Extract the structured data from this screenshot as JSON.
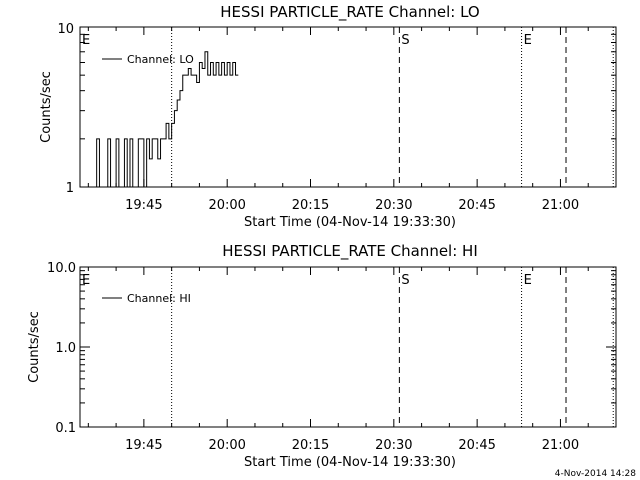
{
  "footer": {
    "timestamp": "4-Nov-2014 14:28"
  },
  "chart_data": [
    {
      "type": "line",
      "title": "HESSI PARTICLE_RATE Channel: LO",
      "xlabel": "Start Time (04-Nov-14 19:33:30)",
      "ylabel": "Counts/sec",
      "yscale": "log",
      "xlim": [
        "19:33:30",
        "21:10:00"
      ],
      "ylim": [
        1,
        10
      ],
      "y_ticks": [
        "1",
        "10"
      ],
      "x_ticks": [
        "19:45",
        "20:00",
        "20:15",
        "20:30",
        "20:45",
        "21:00"
      ],
      "legend": {
        "entries": [
          "Channel: LO"
        ],
        "position": "top-left"
      },
      "markers": [
        {
          "time": "19:33:30",
          "label": "E",
          "style": "none"
        },
        {
          "time": "19:50:00",
          "label": "",
          "style": "dotted"
        },
        {
          "time": "20:31:00",
          "label": "S",
          "style": "dashed"
        },
        {
          "time": "20:53:00",
          "label": "E",
          "style": "dotted"
        },
        {
          "time": "21:01:00",
          "label": "",
          "style": "dashed"
        },
        {
          "time": "21:09:30",
          "label": "",
          "style": "dotted"
        }
      ],
      "series": [
        {
          "name": "Channel: LO",
          "x": [
            "19:36:00",
            "19:36:30",
            "19:37:00",
            "19:37:30",
            "19:38:00",
            "19:38:30",
            "19:39:00",
            "19:39:30",
            "19:40:00",
            "19:40:30",
            "19:41:00",
            "19:41:30",
            "19:42:00",
            "19:42:30",
            "19:43:00",
            "19:43:30",
            "19:44:00",
            "19:44:30",
            "19:45:00",
            "19:45:30",
            "19:46:00",
            "19:46:30",
            "19:47:00",
            "19:47:30",
            "19:48:00",
            "19:48:30",
            "19:49:00",
            "19:49:30",
            "19:50:00",
            "19:50:30",
            "19:51:00",
            "19:51:30",
            "19:52:00",
            "19:52:30",
            "19:53:00",
            "19:53:30",
            "19:54:00",
            "19:54:30",
            "19:55:00",
            "19:55:30",
            "19:56:00",
            "19:56:30",
            "19:57:00",
            "19:57:30",
            "19:58:00",
            "19:58:30",
            "19:59:00",
            "19:59:30",
            "20:00:00",
            "20:00:30",
            "20:01:00",
            "20:01:30",
            "20:02:00"
          ],
          "y": [
            1,
            2,
            1,
            1,
            1,
            2,
            1,
            1,
            2,
            1,
            1,
            2,
            1,
            2,
            1,
            1,
            2,
            2,
            1,
            2,
            1.5,
            2,
            2,
            1.5,
            2,
            2,
            2.5,
            2,
            2.5,
            3,
            3.5,
            4,
            5,
            5,
            5.5,
            5,
            5,
            4.5,
            6,
            5.5,
            7,
            5,
            6,
            5,
            6,
            5,
            6,
            5,
            6,
            5,
            6,
            5,
            5
          ]
        }
      ]
    },
    {
      "type": "line",
      "title": "HESSI PARTICLE_RATE Channel: HI",
      "xlabel": "Start Time (04-Nov-14 19:33:30)",
      "ylabel": "Counts/sec",
      "yscale": "log",
      "xlim": [
        "19:33:30",
        "21:10:00"
      ],
      "ylim": [
        0.1,
        10
      ],
      "y_ticks": [
        "0.1",
        "1.0",
        "10.0"
      ],
      "x_ticks": [
        "19:45",
        "20:00",
        "20:15",
        "20:30",
        "20:45",
        "21:00"
      ],
      "legend": {
        "entries": [
          "Channel: HI"
        ],
        "position": "top-left"
      },
      "markers": [
        {
          "time": "19:33:30",
          "label": "E",
          "style": "none"
        },
        {
          "time": "19:50:00",
          "label": "",
          "style": "dotted"
        },
        {
          "time": "20:31:00",
          "label": "S",
          "style": "dashed"
        },
        {
          "time": "20:53:00",
          "label": "E",
          "style": "dotted"
        },
        {
          "time": "21:01:00",
          "label": "",
          "style": "dashed"
        },
        {
          "time": "21:09:30",
          "label": "",
          "style": "dotted"
        }
      ],
      "series": [
        {
          "name": "Channel: HI",
          "x": [],
          "y": []
        }
      ]
    }
  ]
}
